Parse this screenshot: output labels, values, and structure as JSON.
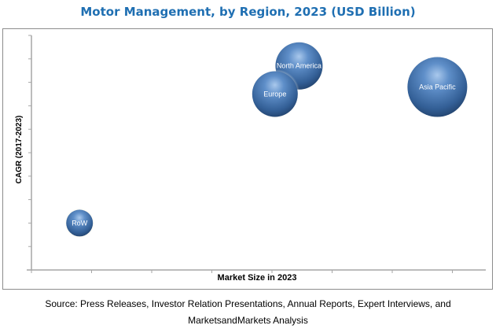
{
  "chart_data": {
    "type": "bubble",
    "title": "Motor Management, by Region, 2023 (USD Billion)",
    "xlabel": "Market Size in 2023",
    "ylabel": "CAGR (2017-2023)",
    "x_tick_labels": [],
    "y_tick_labels": [],
    "xlim": [
      0,
      7.5
    ],
    "ylim": [
      0,
      10
    ],
    "grid": false,
    "legend": "none",
    "units_note": "Axes are unlabeled; values are relative positions in tick intervals",
    "series": [
      {
        "name": "North America",
        "x": 4.45,
        "y": 8.7,
        "size": 30
      },
      {
        "name": "Europe",
        "x": 4.05,
        "y": 7.5,
        "size": 29
      },
      {
        "name": "Asia Pacific",
        "x": 6.75,
        "y": 7.8,
        "size": 38
      },
      {
        "name": "RoW",
        "x": 0.8,
        "y": 2.0,
        "size": 17
      }
    ],
    "bubble_color": "#3f6fa8"
  },
  "footer": {
    "source_line1": "Source: Press Releases, Investor Relation Presentations, Annual Reports, Expert Interviews, and",
    "source_line2": "MarketsandMarkets Analysis"
  }
}
